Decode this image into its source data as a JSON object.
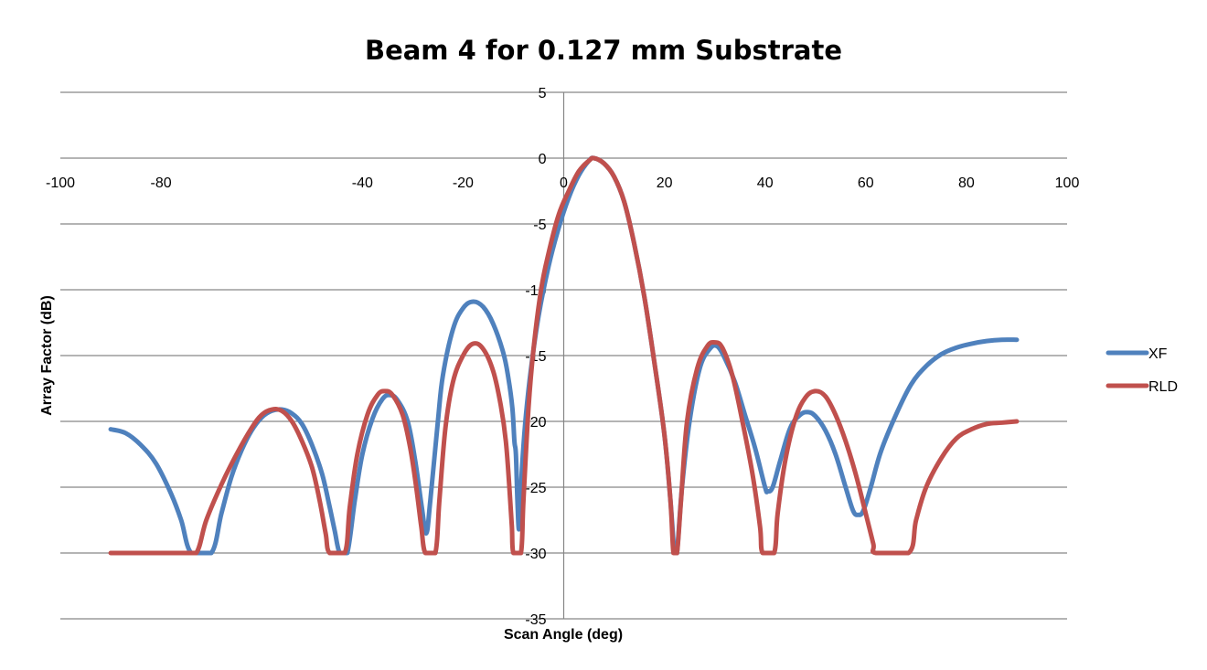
{
  "chart_data": {
    "type": "line",
    "title": "Beam 4 for 0.127 mm Substrate",
    "xlabel": "Scan Angle (deg)",
    "ylabel": "Array Factor (dB)",
    "xlim": [
      -100,
      100
    ],
    "ylim": [
      -35,
      5
    ],
    "x_ticks": [
      -100,
      -80,
      -40,
      -20,
      0,
      20,
      40,
      60,
      80,
      100
    ],
    "y_ticks": [
      5,
      0,
      -5,
      -10,
      -15,
      -20,
      -25,
      -30,
      -35
    ],
    "grid": "horizontal",
    "legend": "right",
    "series": [
      {
        "name": "XF",
        "color": "#4F81BD",
        "points": [
          [
            -90,
            -20.6
          ],
          [
            -87,
            -20.9
          ],
          [
            -84,
            -21.8
          ],
          [
            -81,
            -23.2
          ],
          [
            -78,
            -25.5
          ],
          [
            -76,
            -27.5
          ],
          [
            -74,
            -30
          ],
          [
            -70,
            -30
          ],
          [
            -68,
            -27
          ],
          [
            -66,
            -24.2
          ],
          [
            -64,
            -22.2
          ],
          [
            -62,
            -20.7
          ],
          [
            -60,
            -19.7
          ],
          [
            -58,
            -19.2
          ],
          [
            -56,
            -19.1
          ],
          [
            -54,
            -19.4
          ],
          [
            -52,
            -20.2
          ],
          [
            -50,
            -21.8
          ],
          [
            -48,
            -24
          ],
          [
            -46.5,
            -26.5
          ],
          [
            -45.5,
            -28.3
          ],
          [
            -44.5,
            -30
          ],
          [
            -43,
            -30
          ],
          [
            -41.5,
            -26
          ],
          [
            -40,
            -22.5
          ],
          [
            -38,
            -19.8
          ],
          [
            -36,
            -18.3
          ],
          [
            -34.5,
            -18
          ],
          [
            -33,
            -18.4
          ],
          [
            -31,
            -20
          ],
          [
            -29.5,
            -23
          ],
          [
            -28.2,
            -26.5
          ],
          [
            -27.3,
            -28.5
          ],
          [
            -26.5,
            -26
          ],
          [
            -25,
            -20
          ],
          [
            -24,
            -16.5
          ],
          [
            -22,
            -13
          ],
          [
            -20,
            -11.4
          ],
          [
            -18,
            -10.9
          ],
          [
            -16,
            -11.3
          ],
          [
            -14,
            -12.6
          ],
          [
            -12,
            -14.8
          ],
          [
            -11,
            -16.7
          ],
          [
            -10.2,
            -19
          ],
          [
            -9.8,
            -21.5
          ],
          [
            -9.5,
            -22.5
          ],
          [
            -9.2,
            -26
          ],
          [
            -8.9,
            -28.2
          ],
          [
            -8.6,
            -26
          ],
          [
            -8.2,
            -23
          ],
          [
            -7.5,
            -19.5
          ],
          [
            -6.5,
            -16
          ],
          [
            -5,
            -12
          ],
          [
            -3,
            -8.2
          ],
          [
            -1,
            -5.3
          ],
          [
            1,
            -3
          ],
          [
            3,
            -1.3
          ],
          [
            5,
            -0.2
          ],
          [
            6,
            0
          ],
          [
            8,
            -0.4
          ],
          [
            10,
            -1.4
          ],
          [
            12,
            -3.3
          ],
          [
            14,
            -6.5
          ],
          [
            16,
            -10.5
          ],
          [
            18,
            -15.5
          ],
          [
            20,
            -21
          ],
          [
            21.2,
            -26
          ],
          [
            22,
            -30
          ],
          [
            22.5,
            -30
          ],
          [
            23.5,
            -25
          ],
          [
            25,
            -20
          ],
          [
            27,
            -16
          ],
          [
            29,
            -14.5
          ],
          [
            30.5,
            -14.3
          ],
          [
            32,
            -15.2
          ],
          [
            34,
            -17
          ],
          [
            36,
            -19.5
          ],
          [
            38,
            -22
          ],
          [
            40,
            -25
          ],
          [
            40.5,
            -25.3
          ],
          [
            41.5,
            -25
          ],
          [
            43,
            -23
          ],
          [
            45,
            -20.5
          ],
          [
            47,
            -19.5
          ],
          [
            48.5,
            -19.3
          ],
          [
            50,
            -19.6
          ],
          [
            52,
            -20.7
          ],
          [
            54,
            -22.5
          ],
          [
            56,
            -25
          ],
          [
            57.5,
            -26.8
          ],
          [
            58.5,
            -27.1
          ],
          [
            59.5,
            -26.8
          ],
          [
            61,
            -25
          ],
          [
            63,
            -22.3
          ],
          [
            66,
            -19.5
          ],
          [
            69,
            -17.2
          ],
          [
            72,
            -15.8
          ],
          [
            75,
            -14.9
          ],
          [
            78,
            -14.4
          ],
          [
            81,
            -14.1
          ],
          [
            84,
            -13.9
          ],
          [
            87,
            -13.8
          ],
          [
            90,
            -13.8
          ]
        ]
      },
      {
        "name": "RLD",
        "color": "#C0504D",
        "points": [
          [
            -90,
            -30
          ],
          [
            -76,
            -30
          ],
          [
            -73,
            -30
          ],
          [
            -71,
            -27.5
          ],
          [
            -68,
            -24.8
          ],
          [
            -65,
            -22.5
          ],
          [
            -62,
            -20.5
          ],
          [
            -60,
            -19.5
          ],
          [
            -58,
            -19.1
          ],
          [
            -56,
            -19.2
          ],
          [
            -54,
            -20
          ],
          [
            -52,
            -21.5
          ],
          [
            -50,
            -23.5
          ],
          [
            -48.5,
            -26
          ],
          [
            -47.3,
            -28.5
          ],
          [
            -46.5,
            -30
          ],
          [
            -43.5,
            -30
          ],
          [
            -42.5,
            -26.5
          ],
          [
            -41,
            -22.5
          ],
          [
            -39,
            -19.5
          ],
          [
            -37,
            -18
          ],
          [
            -35.5,
            -17.7
          ],
          [
            -34,
            -18
          ],
          [
            -32,
            -19.5
          ],
          [
            -30.5,
            -22
          ],
          [
            -29.3,
            -25
          ],
          [
            -28.3,
            -28
          ],
          [
            -27.5,
            -30
          ],
          [
            -25.5,
            -30
          ],
          [
            -24.7,
            -26
          ],
          [
            -23.5,
            -20.5
          ],
          [
            -22,
            -17
          ],
          [
            -20,
            -15
          ],
          [
            -18,
            -14.1
          ],
          [
            -16,
            -14.5
          ],
          [
            -14,
            -16.2
          ],
          [
            -12.5,
            -18.8
          ],
          [
            -11.5,
            -21.5
          ],
          [
            -10.8,
            -25
          ],
          [
            -10.3,
            -28
          ],
          [
            -10,
            -30
          ],
          [
            -8.5,
            -30
          ],
          [
            -8,
            -26
          ],
          [
            -7,
            -19
          ],
          [
            -6,
            -14.5
          ],
          [
            -4.5,
            -10
          ],
          [
            -3,
            -7.2
          ],
          [
            -1,
            -4.3
          ],
          [
            1,
            -2.5
          ],
          [
            3,
            -1.0
          ],
          [
            5,
            -0.2
          ],
          [
            6,
            0
          ],
          [
            8,
            -0.4
          ],
          [
            10,
            -1.4
          ],
          [
            12,
            -3.3
          ],
          [
            14,
            -6.5
          ],
          [
            16,
            -10.5
          ],
          [
            18,
            -15.5
          ],
          [
            20,
            -21
          ],
          [
            21.2,
            -26
          ],
          [
            21.8,
            -30
          ],
          [
            22.5,
            -30
          ],
          [
            23.3,
            -26
          ],
          [
            24.5,
            -20
          ],
          [
            26.5,
            -16
          ],
          [
            28.5,
            -14.3
          ],
          [
            30,
            -14
          ],
          [
            31.5,
            -14.4
          ],
          [
            33.5,
            -16.5
          ],
          [
            35.5,
            -20
          ],
          [
            37.5,
            -24
          ],
          [
            39,
            -28
          ],
          [
            39.5,
            -30
          ],
          [
            41.8,
            -30
          ],
          [
            42.5,
            -27
          ],
          [
            44,
            -23
          ],
          [
            46,
            -19.8
          ],
          [
            48,
            -18.2
          ],
          [
            50,
            -17.7
          ],
          [
            52,
            -18.1
          ],
          [
            54,
            -19.5
          ],
          [
            56,
            -21.5
          ],
          [
            58,
            -24
          ],
          [
            60,
            -27
          ],
          [
            61.5,
            -29.3
          ],
          [
            62,
            -30
          ],
          [
            68.5,
            -30
          ],
          [
            70,
            -27.5
          ],
          [
            72,
            -25
          ],
          [
            75,
            -22.8
          ],
          [
            78,
            -21.3
          ],
          [
            81,
            -20.6
          ],
          [
            84,
            -20.2
          ],
          [
            87,
            -20.1
          ],
          [
            90,
            -20.0
          ]
        ]
      }
    ]
  }
}
